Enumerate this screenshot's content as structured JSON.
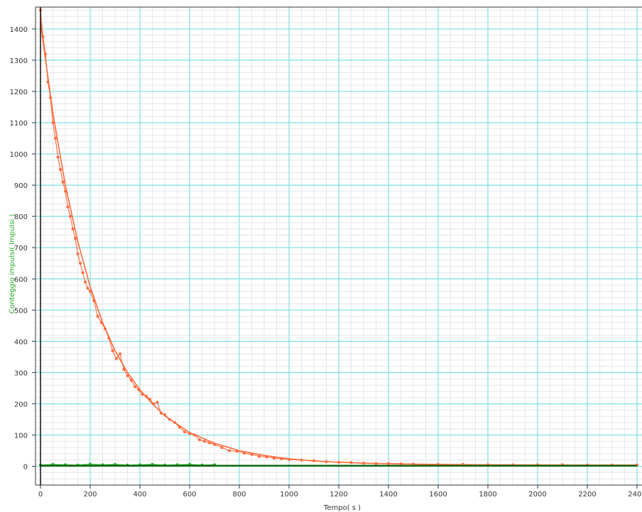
{
  "chart_data": {
    "type": "line",
    "xlabel": "Tempo( s )",
    "ylabel": "Conteggio impulsi( Impulsi )",
    "xlim": [
      -20,
      2420
    ],
    "ylim": [
      -60,
      1470
    ],
    "x_ticks": [
      0,
      200,
      400,
      600,
      800,
      1000,
      1200,
      1400,
      1600,
      1800,
      2000,
      2200,
      2400
    ],
    "y_ticks": [
      0,
      100,
      200,
      300,
      400,
      500,
      600,
      700,
      800,
      900,
      1000,
      1100,
      1200,
      1300,
      1400
    ],
    "grid": true,
    "colors": {
      "major_grid": "#7ee0e3",
      "minor_grid": "#e6e6e6",
      "ylabel": "#22aa22",
      "axis": "#000000"
    },
    "series": [
      {
        "color": "#ff6a3c",
        "x": [
          0,
          10,
          20,
          30,
          40,
          50,
          60,
          70,
          80,
          90,
          100,
          110,
          120,
          130,
          140,
          150,
          160,
          170,
          180,
          190,
          200,
          215,
          230,
          245,
          260,
          275,
          290,
          305,
          320,
          335,
          350,
          365,
          380,
          395,
          410,
          425,
          440,
          455,
          470,
          485,
          500,
          520,
          540,
          560,
          580,
          600,
          620,
          640,
          660,
          680,
          700,
          730,
          760,
          790,
          820,
          850,
          880,
          910,
          940,
          970,
          1000,
          1050,
          1100,
          1150,
          1200,
          1250,
          1300,
          1350,
          1400,
          1450,
          1500,
          1600,
          1700,
          1800,
          1900,
          2000,
          2100,
          2200,
          2300,
          2400
        ],
        "values": [
          1460,
          1375,
          1320,
          1230,
          1180,
          1100,
          1050,
          990,
          950,
          910,
          880,
          830,
          800,
          760,
          730,
          680,
          650,
          620,
          590,
          570,
          560,
          530,
          480,
          460,
          440,
          410,
          370,
          345,
          360,
          310,
          290,
          275,
          255,
          245,
          230,
          225,
          215,
          200,
          205,
          170,
          165,
          150,
          140,
          125,
          110,
          105,
          100,
          85,
          80,
          75,
          70,
          60,
          50,
          48,
          42,
          38,
          32,
          30,
          26,
          24,
          22,
          20,
          18,
          15,
          13,
          12,
          10,
          9,
          9,
          8,
          7,
          6,
          6,
          5,
          5,
          5,
          5,
          4,
          4,
          4
        ]
      },
      {
        "color": "#ff6a3c",
        "x": [
          0,
          50,
          100,
          150,
          200,
          250,
          300,
          350,
          400,
          450,
          500,
          600,
          700,
          800,
          900,
          1000,
          1100,
          1200,
          1300,
          1400,
          1600,
          1800,
          2000,
          2200,
          2400
        ],
        "values": [
          1420,
          1130,
          900,
          720,
          575,
          460,
          370,
          300,
          245,
          200,
          162,
          108,
          74,
          50,
          35,
          24,
          17,
          13,
          10,
          8,
          6,
          5,
          4,
          4,
          4
        ]
      },
      {
        "color": "#22aa22",
        "x": [
          0,
          50,
          100,
          150,
          200,
          250,
          300,
          350,
          400,
          450,
          500,
          550,
          600,
          650,
          700
        ],
        "values": [
          4,
          6,
          5,
          4,
          7,
          5,
          6,
          4,
          5,
          6,
          4,
          5,
          6,
          4,
          5
        ]
      },
      {
        "color": "#116611",
        "x": [
          0,
          2400
        ],
        "values": [
          2,
          2
        ]
      }
    ]
  }
}
